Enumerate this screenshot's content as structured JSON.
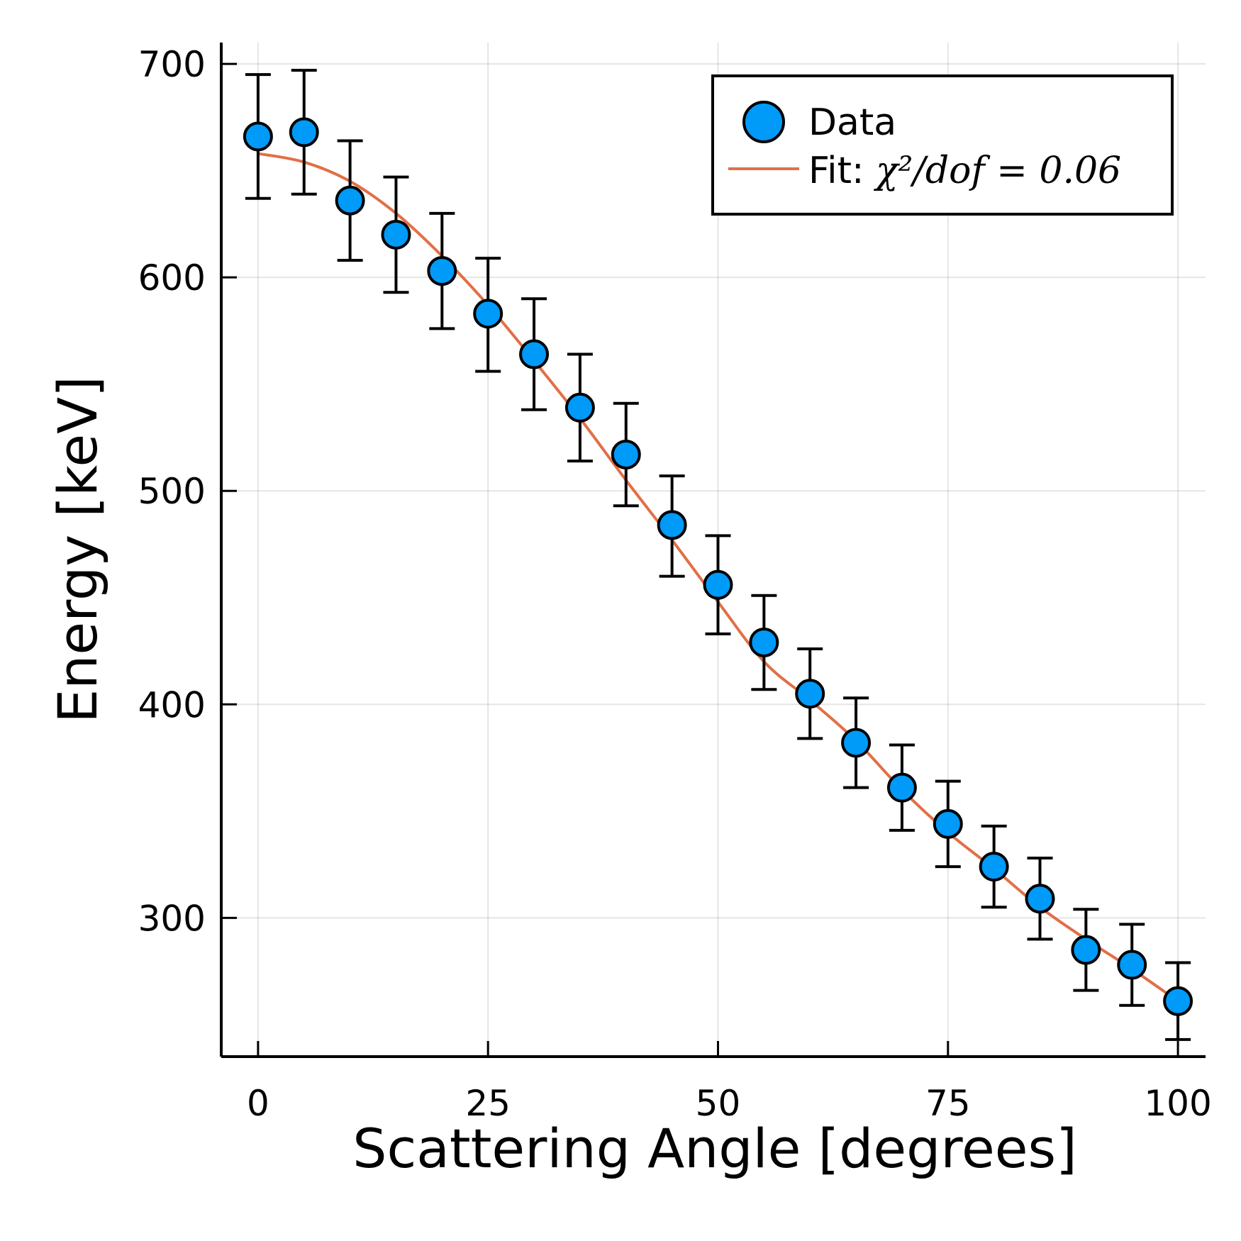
{
  "chart_data": {
    "type": "scatter",
    "xlabel": "Scattering Angle [degrees]",
    "ylabel": "Energy [keV]",
    "xlim": [
      -4,
      103
    ],
    "ylim": [
      235,
      710
    ],
    "xticks": [
      0,
      25,
      50,
      75,
      100
    ],
    "yticks": [
      300,
      400,
      500,
      600,
      700
    ],
    "grid": true,
    "legend_position": "top-right",
    "colors": {
      "data": "#009af9",
      "fit": "#e26f46"
    },
    "series": [
      {
        "name": "Data",
        "kind": "points-with-errorbars",
        "x": [
          0,
          5,
          10,
          15,
          20,
          25,
          30,
          35,
          40,
          45,
          50,
          55,
          60,
          65,
          70,
          75,
          80,
          85,
          90,
          95,
          100
        ],
        "y": [
          666,
          668,
          636,
          620,
          603,
          583,
          564,
          539,
          517,
          484,
          456,
          429,
          405,
          382,
          361,
          344,
          324,
          309,
          285,
          278,
          261
        ],
        "yerr_low": [
          29,
          29,
          28,
          27,
          27,
          27,
          26,
          25,
          24,
          24,
          23,
          22,
          21,
          21,
          20,
          20,
          19,
          19,
          19,
          19,
          18
        ],
        "yerr_high": [
          29,
          29,
          28,
          27,
          27,
          26,
          26,
          25,
          24,
          23,
          23,
          22,
          21,
          21,
          20,
          20,
          19,
          19,
          19,
          19,
          18
        ]
      },
      {
        "name": "Fit: ",
        "name_math": "χ²/dof = 0.06",
        "kind": "line",
        "x": [
          0,
          5,
          10,
          15,
          20,
          25,
          30,
          35,
          40,
          45,
          50,
          55,
          60,
          65,
          70,
          75,
          80,
          85,
          90,
          95,
          100
        ],
        "y": [
          658,
          654,
          645,
          630,
          610,
          587,
          561,
          534,
          505,
          477,
          448,
          420,
          402,
          383,
          360,
          340,
          323,
          305,
          290,
          276,
          261
        ]
      }
    ]
  }
}
